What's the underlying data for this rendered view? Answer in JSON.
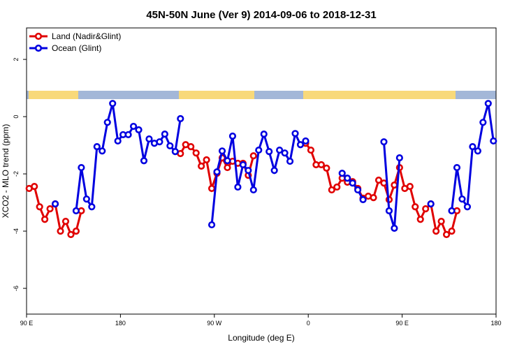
{
  "chart_data": {
    "type": "line",
    "title": "45N-50N June (Ver 9)   2014-09-06 to 2018-12-31",
    "x_label": "Longitude (deg E)",
    "y_label": "XCO2 - MLO trend (ppm)",
    "x": [
      92.5,
      97.5,
      102.5,
      107.5,
      112.5,
      117.5,
      122.5,
      127.5,
      132.5,
      137.5,
      142.5,
      147.5,
      152.5,
      157.5,
      162.5,
      167.5,
      172.5,
      177.5,
      182.5,
      187.5,
      192.5,
      197.5,
      202.5,
      207.5,
      212.5,
      217.5,
      222.5,
      227.5,
      232.5,
      237.5,
      242.5,
      247.5,
      252.5,
      257.5,
      262.5,
      267.5,
      272.5,
      277.5,
      282.5,
      287.5,
      292.5,
      297.5,
      302.5,
      307.5,
      312.5,
      317.5,
      322.5,
      327.5,
      332.5,
      337.5,
      342.5,
      347.5,
      352.5,
      357.5,
      362.5,
      367.5,
      372.5,
      377.5,
      382.5,
      387.5,
      392.5,
      397.5,
      402.5,
      407.5,
      412.5,
      417.5,
      422.5,
      427.5,
      432.5,
      437.5,
      442.5,
      447.5,
      452.5,
      457.5,
      462.5,
      467.5,
      472.5,
      477.5,
      482.5,
      487.5,
      492.5,
      497.5,
      502.5,
      507.5,
      512.5,
      517.5,
      522.5,
      527.5,
      532.5,
      537.5
    ],
    "series": [
      {
        "name": "Land (Nadir&Glint)",
        "color": "#e00000",
        "values": [
          -2.51,
          -2.44,
          -3.15,
          -3.59,
          -3.22,
          -3.05,
          -4.0,
          -3.66,
          -4.12,
          -4.0,
          -3.29,
          null,
          null,
          null,
          null,
          null,
          null,
          null,
          null,
          null,
          null,
          null,
          null,
          null,
          null,
          null,
          null,
          null,
          null,
          -1.29,
          -0.98,
          -1.05,
          -1.27,
          -1.73,
          -1.51,
          -2.51,
          -1.98,
          -1.44,
          -1.78,
          -1.56,
          -1.63,
          -1.63,
          -2.05,
          -1.37,
          null,
          null,
          null,
          null,
          null,
          null,
          null,
          null,
          null,
          -0.93,
          -1.17,
          -1.68,
          -1.68,
          -1.8,
          -2.56,
          -2.46,
          -2.15,
          -2.29,
          -2.27,
          -2.51,
          -2.85,
          -2.78,
          -2.83,
          -2.22,
          -2.32,
          -2.9,
          -2.39,
          -1.78,
          -2.51,
          -2.44,
          -3.15,
          -3.59,
          -3.22,
          -3.05,
          -4.0,
          -3.66,
          -4.12,
          -4.0,
          -3.29,
          null,
          null,
          null,
          null,
          null,
          null,
          null
        ]
      },
      {
        "name": "Ocean (Glint)",
        "color": "#0000e0",
        "values": [
          null,
          null,
          null,
          null,
          null,
          -3.05,
          null,
          null,
          null,
          -3.29,
          -1.78,
          -2.88,
          -3.15,
          -1.05,
          -1.2,
          -0.2,
          0.46,
          -0.85,
          -0.63,
          -0.63,
          -0.34,
          -0.46,
          -1.54,
          -0.78,
          -0.93,
          -0.88,
          -0.61,
          -1.02,
          -1.22,
          -0.07,
          null,
          null,
          null,
          null,
          null,
          -3.78,
          -1.93,
          -1.2,
          -1.54,
          -0.68,
          -2.46,
          -1.68,
          -1.88,
          -2.56,
          -1.17,
          -0.61,
          -1.22,
          -1.88,
          -1.17,
          -1.27,
          -1.56,
          -0.59,
          -0.98,
          -0.85,
          null,
          null,
          null,
          null,
          null,
          null,
          -1.98,
          -2.15,
          -2.32,
          -2.56,
          -2.9,
          null,
          null,
          null,
          -0.88,
          -3.29,
          -3.9,
          -1.44,
          null,
          null,
          null,
          null,
          null,
          -3.05,
          null,
          null,
          null,
          -3.29,
          -1.78,
          -2.88,
          -3.15,
          -1.05,
          -1.2,
          -0.2,
          0.46,
          -0.85
        ]
      }
    ],
    "xlim": [
      90,
      540
    ],
    "xticks": [
      {
        "value": 90,
        "label": "90 E"
      },
      180,
      {
        "value": 270,
        "label": "90 W"
      },
      {
        "value": 360,
        "label": "0"
      },
      {
        "value": 450,
        "label": "90 E"
      },
      {
        "value": 540,
        "label": "180"
      }
    ],
    "ylim": [
      -6.9,
      3.1
    ],
    "yticks": [
      -6,
      -4,
      -2,
      0,
      2
    ],
    "legend": "top-left"
  }
}
